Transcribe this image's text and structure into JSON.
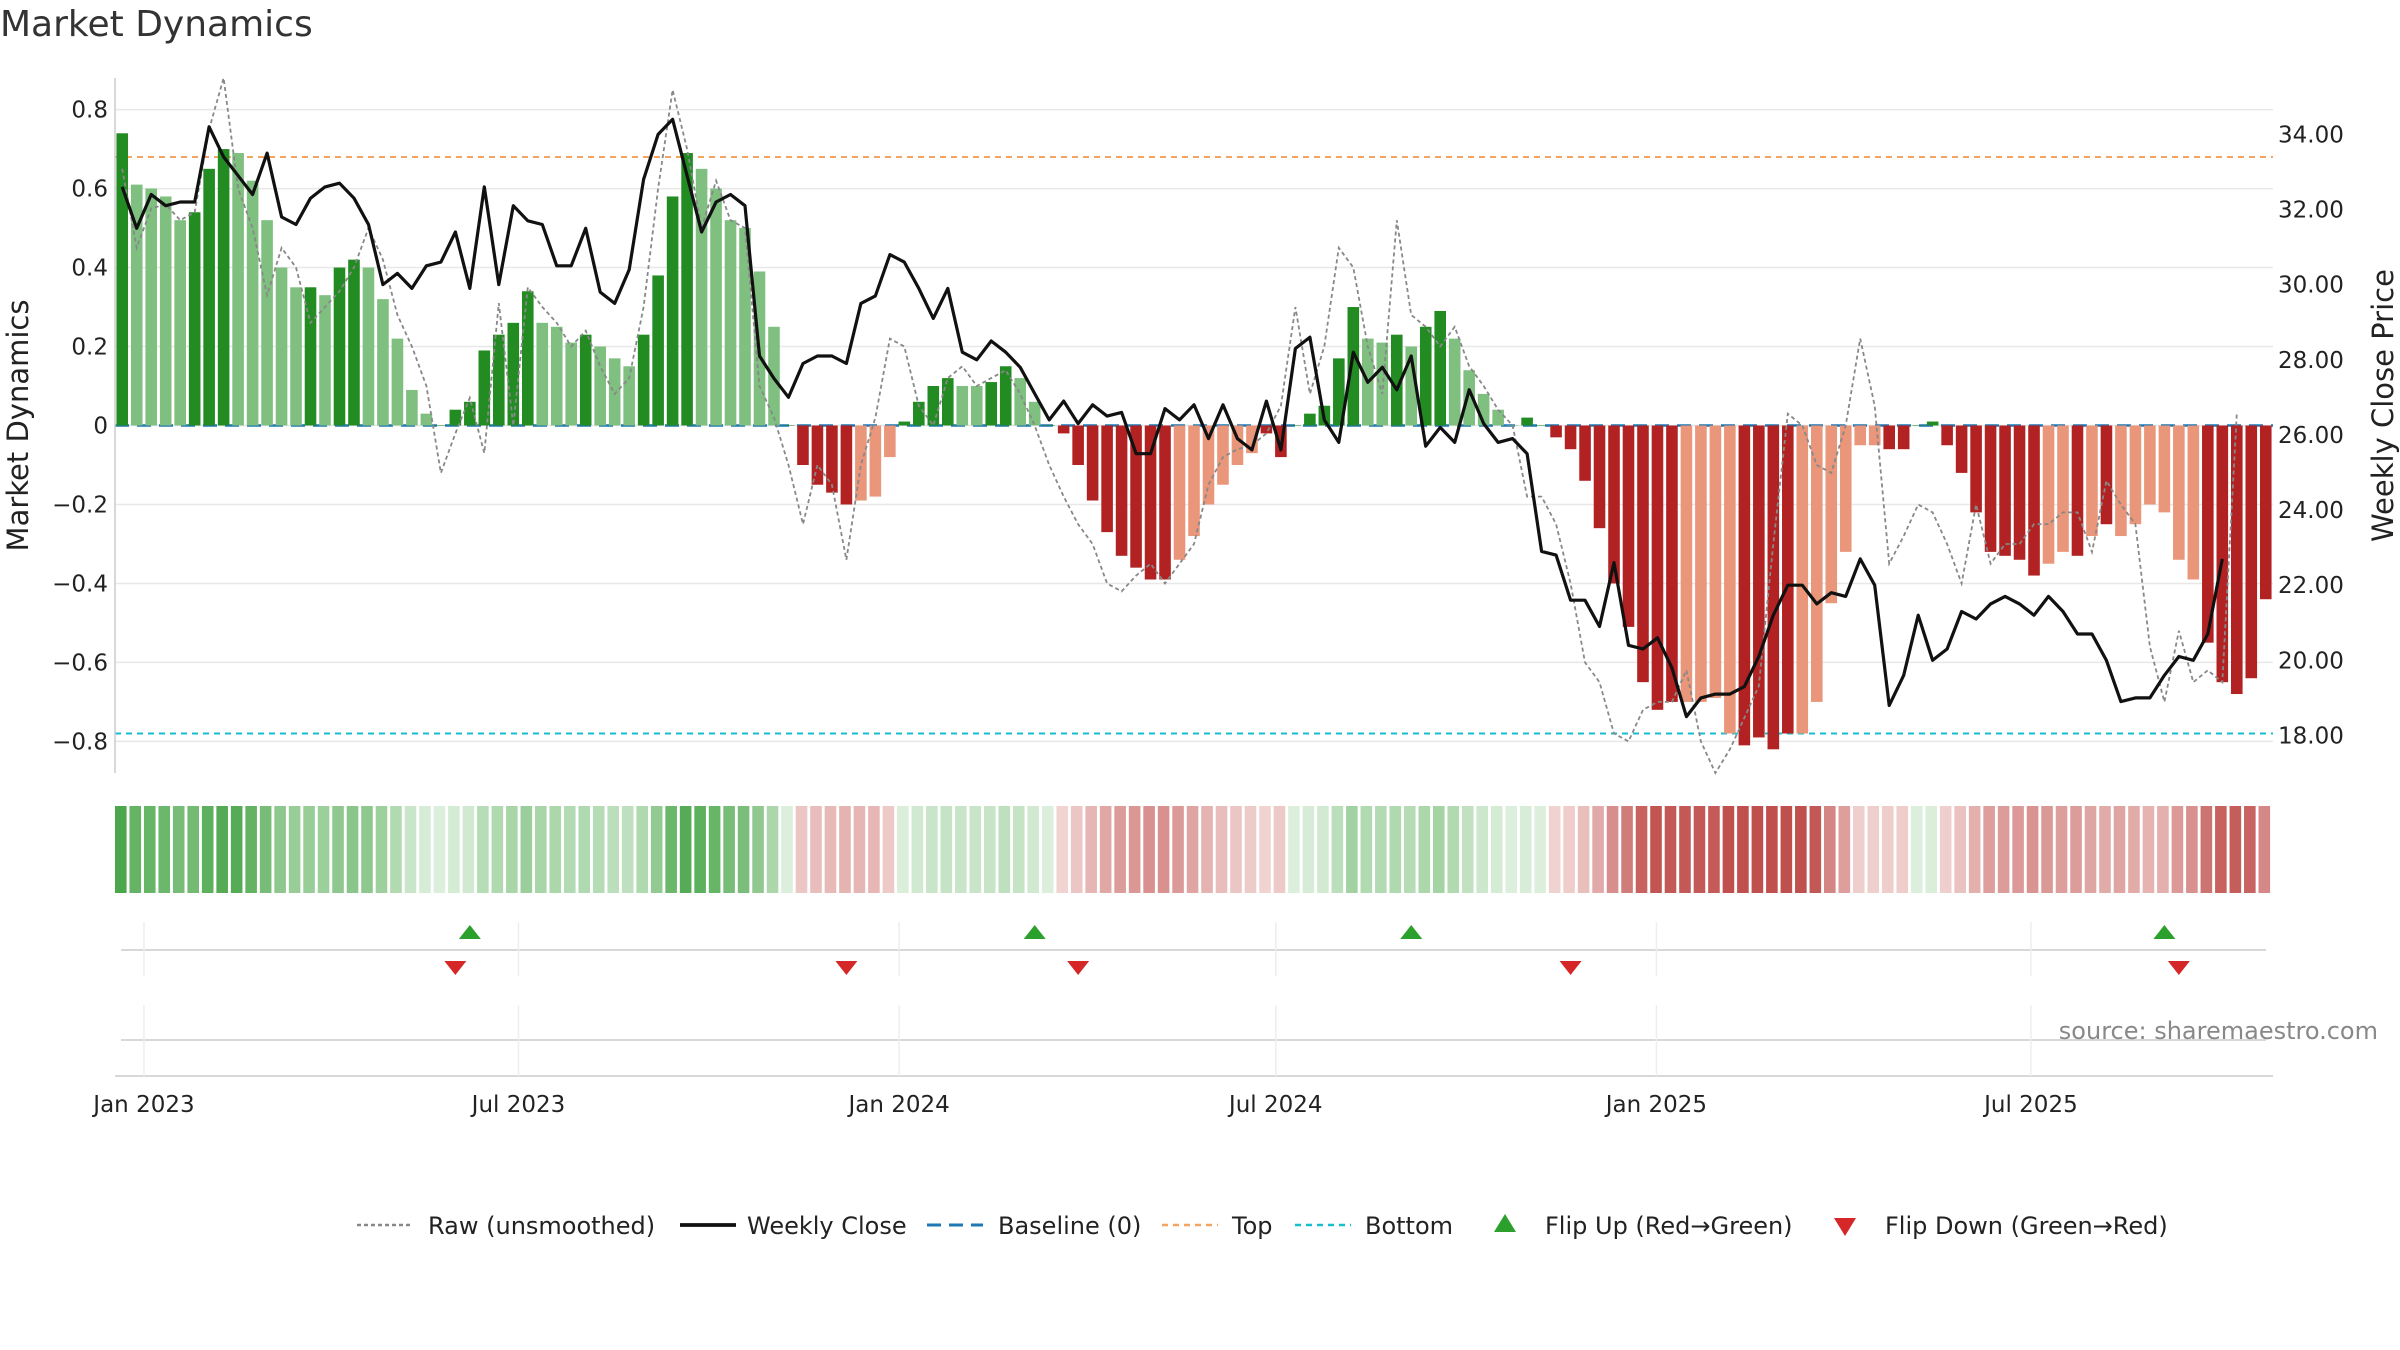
{
  "title": "Market Dynamics",
  "source": "source: sharemaestro.com",
  "colors": {
    "green_strong": "#228b22",
    "green_light": "#7fbf7f",
    "red_strong": "#b22222",
    "red_light": "#e9967a",
    "weekly_close": "#111111",
    "raw": "#888888",
    "baseline": "#1f77b4",
    "top": "#f4a460",
    "bottom": "#17becf",
    "flip_up": "#2ca02c",
    "flip_down": "#d62728"
  },
  "chart_data": {
    "type": "bar",
    "title": "Market Dynamics",
    "ylabel": "Market Dynamics",
    "y2label": "Weekly Close Price",
    "ylim": [
      -0.88,
      0.88
    ],
    "y2lim": [
      17.0,
      35.5
    ],
    "yticks": [
      "0.8",
      "0.6",
      "0.4",
      "0.2",
      "0",
      "−0.2",
      "−0.4",
      "−0.6",
      "−0.8"
    ],
    "ytick_values": [
      0.8,
      0.6,
      0.4,
      0.2,
      0,
      -0.2,
      -0.4,
      -0.6,
      -0.8
    ],
    "y2ticks": [
      "34.00",
      "32.00",
      "30.00",
      "28.00",
      "26.00",
      "24.00",
      "22.00",
      "20.00",
      "18.00"
    ],
    "y2tick_values": [
      34,
      32,
      30,
      28,
      26,
      24,
      22,
      20,
      18
    ],
    "xticks": [
      "Jan 2023",
      "Jul 2023",
      "Jan 2024",
      "Jul 2024",
      "Jan 2025",
      "Jul 2025"
    ],
    "xtick_dates": [
      "2023-01-01",
      "2023-07-01",
      "2024-01-01",
      "2024-07-01",
      "2025-01-01",
      "2025-07-01"
    ],
    "start_date": "2022-12-18",
    "levels": {
      "baseline": 0,
      "top": 0.68,
      "bottom": -0.78
    },
    "bar_values": [
      0.74,
      0.61,
      0.6,
      0.58,
      0.52,
      0.54,
      0.65,
      0.7,
      0.69,
      0.62,
      0.52,
      0.4,
      0.35,
      0.35,
      0.33,
      0.4,
      0.42,
      0.4,
      0.32,
      0.22,
      0.09,
      0.03,
      0.0,
      0.04,
      0.06,
      0.19,
      0.23,
      0.26,
      0.34,
      0.26,
      0.25,
      0.21,
      0.23,
      0.2,
      0.17,
      0.15,
      0.23,
      0.38,
      0.58,
      0.69,
      0.65,
      0.6,
      0.52,
      0.5,
      0.39,
      0.25,
      0.0,
      -0.1,
      -0.15,
      -0.17,
      -0.2,
      -0.19,
      -0.18,
      -0.08,
      0.01,
      0.06,
      0.1,
      0.12,
      0.1,
      0.1,
      0.11,
      0.15,
      0.12,
      0.06,
      0.0,
      -0.02,
      -0.1,
      -0.19,
      -0.27,
      -0.33,
      -0.36,
      -0.39,
      -0.39,
      -0.34,
      -0.28,
      -0.2,
      -0.15,
      -0.1,
      -0.07,
      -0.02,
      -0.08,
      0.0,
      0.03,
      0.05,
      0.17,
      0.3,
      0.22,
      0.21,
      0.23,
      0.2,
      0.25,
      0.29,
      0.22,
      0.14,
      0.08,
      0.04,
      0.0,
      0.02,
      0.0,
      -0.03,
      -0.06,
      -0.14,
      -0.26,
      -0.4,
      -0.51,
      -0.65,
      -0.72,
      -0.7,
      -0.7,
      -0.7,
      -0.69,
      -0.78,
      -0.81,
      -0.79,
      -0.82,
      -0.78,
      -0.78,
      -0.7,
      -0.45,
      -0.32,
      -0.05,
      -0.05,
      -0.06,
      -0.06,
      0.0,
      0.01,
      -0.05,
      -0.12,
      -0.22,
      -0.32,
      -0.33,
      -0.34,
      -0.38,
      -0.35,
      -0.32,
      -0.33,
      -0.28,
      -0.25,
      -0.28,
      -0.25,
      -0.2,
      -0.22,
      -0.34,
      -0.39,
      -0.55,
      -0.65,
      -0.68,
      -0.64,
      -0.44
    ],
    "bar_strength": [
      "s",
      "l",
      "l",
      "l",
      "l",
      "s",
      "s",
      "s",
      "l",
      "l",
      "l",
      "l",
      "l",
      "s",
      "l",
      "s",
      "s",
      "l",
      "l",
      "l",
      "l",
      "l",
      "s",
      "s",
      "s",
      "s",
      "s",
      "s",
      "s",
      "l",
      "l",
      "l",
      "s",
      "l",
      "l",
      "l",
      "s",
      "s",
      "s",
      "s",
      "l",
      "l",
      "l",
      "l",
      "l",
      "l",
      "s",
      "s",
      "s",
      "s",
      "s",
      "l",
      "l",
      "l",
      "s",
      "s",
      "s",
      "s",
      "l",
      "l",
      "s",
      "s",
      "l",
      "l",
      "s",
      "s",
      "s",
      "s",
      "s",
      "s",
      "s",
      "s",
      "s",
      "l",
      "l",
      "l",
      "l",
      "l",
      "l",
      "s",
      "s",
      "s",
      "s",
      "s",
      "s",
      "s",
      "l",
      "l",
      "s",
      "l",
      "s",
      "s",
      "l",
      "l",
      "l",
      "l",
      "l",
      "s",
      "s",
      "s",
      "s",
      "s",
      "s",
      "s",
      "s",
      "s",
      "s",
      "s",
      "l",
      "l",
      "l",
      "l",
      "s",
      "s",
      "s",
      "s",
      "l",
      "l",
      "l",
      "l",
      "l",
      "l",
      "s",
      "s",
      "s",
      "s",
      "s",
      "s",
      "s",
      "s",
      "s",
      "s",
      "s",
      "l",
      "l",
      "s",
      "l",
      "s",
      "l",
      "l",
      "l",
      "l",
      "l",
      "l",
      "s",
      "s",
      "s",
      "s",
      "s",
      "s",
      "s",
      "l"
    ],
    "weekly_close": [
      32.6,
      31.5,
      32.4,
      32.1,
      32.2,
      32.2,
      34.2,
      33.4,
      32.9,
      32.4,
      33.5,
      31.8,
      31.6,
      32.3,
      32.6,
      32.7,
      32.3,
      31.6,
      30.0,
      30.3,
      29.9,
      30.5,
      30.6,
      31.4,
      29.9,
      32.6,
      30.0,
      32.1,
      31.7,
      31.6,
      30.5,
      30.5,
      31.5,
      29.8,
      29.5,
      30.4,
      32.8,
      34.0,
      34.4,
      32.9,
      31.4,
      32.2,
      32.4,
      32.1,
      28.1,
      27.5,
      27.0,
      27.9,
      28.1,
      28.1,
      27.9,
      29.5,
      29.7,
      30.8,
      30.6,
      29.9,
      29.1,
      29.9,
      28.2,
      28.0,
      28.5,
      28.2,
      27.8,
      27.1,
      26.4,
      26.9,
      26.3,
      26.8,
      26.5,
      26.6,
      25.5,
      25.5,
      26.7,
      26.4,
      26.8,
      25.9,
      26.8,
      25.9,
      25.6,
      26.9,
      25.6,
      28.3,
      28.6,
      26.4,
      25.8,
      28.2,
      27.4,
      27.8,
      27.2,
      28.1,
      25.7,
      26.2,
      25.8,
      27.2,
      26.3,
      25.8,
      25.9,
      25.5,
      22.9,
      22.8,
      21.6,
      21.6,
      20.9,
      22.6,
      20.4,
      20.3,
      20.6,
      19.8,
      18.5,
      19.0,
      19.1,
      19.1,
      19.3,
      20.1,
      21.2,
      22.0,
      22.0,
      21.5,
      21.8,
      21.7,
      22.7,
      22.0,
      18.8,
      19.6,
      21.2,
      20.0,
      20.3,
      21.3,
      21.1,
      21.5,
      21.7,
      21.5,
      21.2,
      21.7,
      21.3,
      20.7,
      20.7,
      20.0,
      18.9,
      19.0,
      19.0,
      19.6,
      20.1,
      20.0,
      20.7,
      22.7
    ],
    "raw": [
      0.65,
      0.45,
      0.55,
      0.56,
      0.52,
      0.54,
      0.75,
      0.88,
      0.6,
      0.5,
      0.33,
      0.45,
      0.4,
      0.26,
      0.3,
      0.34,
      0.4,
      0.5,
      0.42,
      0.28,
      0.2,
      0.1,
      -0.12,
      -0.02,
      0.07,
      -0.07,
      0.31,
      0.0,
      0.35,
      0.3,
      0.26,
      0.2,
      0.24,
      0.15,
      0.08,
      0.12,
      0.3,
      0.6,
      0.85,
      0.7,
      0.5,
      0.62,
      0.52,
      0.5,
      0.1,
      0.02,
      -0.1,
      -0.25,
      -0.1,
      -0.15,
      -0.34,
      -0.1,
      0.02,
      0.22,
      0.2,
      0.05,
      0.0,
      0.12,
      0.15,
      0.1,
      0.12,
      0.14,
      0.08,
      0.0,
      -0.1,
      -0.18,
      -0.25,
      -0.3,
      -0.4,
      -0.42,
      -0.38,
      -0.35,
      -0.4,
      -0.35,
      -0.3,
      -0.15,
      -0.08,
      -0.06,
      -0.05,
      -0.02,
      0.05,
      0.3,
      0.08,
      0.2,
      0.45,
      0.4,
      0.2,
      0.08,
      0.52,
      0.28,
      0.25,
      0.2,
      0.25,
      0.15,
      0.1,
      0.04,
      0.0,
      -0.18,
      -0.18,
      -0.25,
      -0.4,
      -0.6,
      -0.65,
      -0.78,
      -0.8,
      -0.72,
      -0.7,
      -0.7,
      -0.62,
      -0.8,
      -0.88,
      -0.82,
      -0.74,
      -0.66,
      -0.3,
      0.03,
      0.0,
      -0.1,
      -0.12,
      0.0,
      0.22,
      0.05,
      -0.35,
      -0.28,
      -0.2,
      -0.22,
      -0.3,
      -0.4,
      -0.2,
      -0.35,
      -0.3,
      -0.3,
      -0.25,
      -0.25,
      -0.22,
      -0.22,
      -0.32,
      -0.14,
      -0.2,
      -0.25,
      -0.56,
      -0.7,
      -0.52,
      -0.65,
      -0.62,
      -0.65,
      0.03
    ],
    "flip_up_weeks": [
      24,
      63,
      89,
      141
    ],
    "flip_down_weeks": [
      23,
      50,
      66,
      100,
      142
    ],
    "legend": [
      "Raw (unsmoothed)",
      "Weekly Close",
      "Baseline (0)",
      "Top",
      "Bottom",
      "Flip Up (Red→Green)",
      "Flip Down (Green→Red)"
    ],
    "legend_position": "bottom-center",
    "grid": true
  }
}
